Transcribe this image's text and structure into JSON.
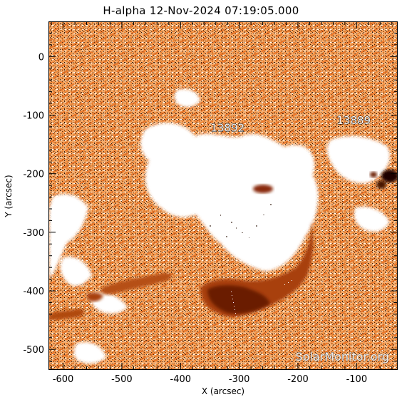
{
  "title": "H-alpha 12-Nov-2024 07:19:05.000",
  "xlabel": "X (arcsec)",
  "ylabel": "Y (arcsec)",
  "x_ticks": [
    "-600",
    "-500",
    "-400",
    "-300",
    "-200",
    "-100"
  ],
  "y_ticks": [
    "0",
    "-100",
    "-200",
    "-300",
    "-400",
    "-500"
  ],
  "regions": [
    {
      "label": "13892",
      "x": -320,
      "y": -128
    },
    {
      "label": "13889",
      "x": -105,
      "y": -115
    }
  ],
  "watermark": "SolarMonitor.org",
  "colors": {
    "background": "#ffffff",
    "chromosphere": "#f08a35",
    "filament": "#a8400c",
    "filament_dark": "#5a1a05"
  },
  "axis_range": {
    "x": [
      -625,
      -30
    ],
    "y": [
      -535,
      60
    ]
  }
}
